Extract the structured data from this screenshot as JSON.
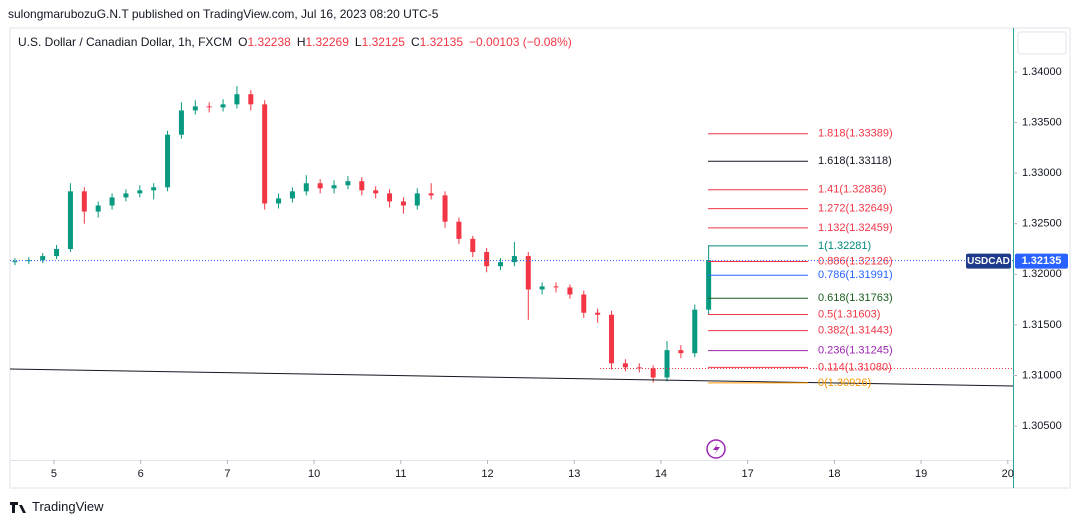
{
  "chart_data": {
    "type": "candlestick",
    "publisher": "sulongmarubozuG.N.T published on TradingView.com, Jul 16, 2023 08:20 UTC-5",
    "title": "U.S. Dollar / Canadian Dollar, 1h, FXCM",
    "ohlc_legend": [
      {
        "key": "O",
        "value": "1.32238"
      },
      {
        "key": "H",
        "value": "1.32269"
      },
      {
        "key": "L",
        "value": "1.32125"
      },
      {
        "key": "C",
        "value": "1.32135"
      }
    ],
    "change": "−0.00103 (−0.08%)",
    "branding": "TradingView",
    "up_color": "#089981",
    "down_color": "#f23645",
    "xlim": [
      -0.507,
      11.06
    ],
    "xticks": [
      {
        "value": 0,
        "label": "5"
      },
      {
        "value": 1,
        "label": "6"
      },
      {
        "value": 2,
        "label": "7"
      },
      {
        "value": 3,
        "label": "10"
      },
      {
        "value": 4,
        "label": "11"
      },
      {
        "value": 5,
        "label": "12"
      },
      {
        "value": 6,
        "label": "13"
      },
      {
        "value": 7,
        "label": "14"
      },
      {
        "value": 8,
        "label": "17"
      },
      {
        "value": 9,
        "label": "18"
      },
      {
        "value": 10,
        "label": "19"
      },
      {
        "value": 11,
        "label": "20"
      }
    ],
    "ylim": [
      1.30164,
      1.34415
    ],
    "yticks": [
      {
        "value": 1.34,
        "label": "1.34000"
      },
      {
        "value": 1.335,
        "label": "1.33500"
      },
      {
        "value": 1.33,
        "label": "1.33000"
      },
      {
        "value": 1.325,
        "label": "1.32500"
      },
      {
        "value": 1.32,
        "label": "1.32000"
      },
      {
        "value": 1.315,
        "label": "1.31500"
      },
      {
        "value": 1.31,
        "label": "1.31000"
      },
      {
        "value": 1.305,
        "label": "1.30500"
      }
    ],
    "x": [
      -0.45,
      -0.29,
      -0.13,
      0.03,
      0.19,
      0.35,
      0.51,
      0.67,
      0.83,
      0.99,
      1.15,
      1.31,
      1.47,
      1.63,
      1.79,
      1.95,
      2.11,
      2.27,
      2.43,
      2.59,
      2.75,
      2.91,
      3.07,
      3.23,
      3.39,
      3.55,
      3.71,
      3.87,
      4.03,
      4.19,
      4.35,
      4.51,
      4.67,
      4.83,
      4.99,
      5.15,
      5.31,
      5.47,
      5.63,
      5.79,
      5.95,
      6.11,
      6.27,
      6.43,
      6.59,
      6.75,
      6.91,
      7.07,
      7.23,
      7.39,
      7.55
    ],
    "open": [
      1.3212,
      1.3213,
      1.3214,
      1.3218,
      1.3225,
      1.3282,
      1.3262,
      1.3268,
      1.3276,
      1.328,
      1.3283,
      1.3286,
      1.3338,
      1.3362,
      1.3366,
      1.3365,
      1.3368,
      1.3378,
      1.3368,
      1.327,
      1.3275,
      1.3282,
      1.329,
      1.3285,
      1.3288,
      1.3292,
      1.3283,
      1.328,
      1.3272,
      1.3268,
      1.328,
      1.3278,
      1.3252,
      1.3235,
      1.3222,
      1.3208,
      1.3212,
      1.3218,
      1.3185,
      1.3188,
      1.3187,
      1.318,
      1.3162,
      1.316,
      1.3112,
      1.3108,
      1.3107,
      1.3098,
      1.3125,
      1.3122,
      1.3165
    ],
    "high": [
      1.3216,
      1.3217,
      1.3221,
      1.3229,
      1.329,
      1.3286,
      1.3272,
      1.328,
      1.3284,
      1.3288,
      1.329,
      1.3342,
      1.337,
      1.3372,
      1.337,
      1.3373,
      1.3386,
      1.3382,
      1.3372,
      1.328,
      1.3286,
      1.3298,
      1.3294,
      1.3293,
      1.3297,
      1.3296,
      1.3287,
      1.3284,
      1.3276,
      1.3285,
      1.329,
      1.3282,
      1.3256,
      1.3238,
      1.3226,
      1.3216,
      1.3232,
      1.3222,
      1.3192,
      1.3192,
      1.319,
      1.3184,
      1.3166,
      1.3164,
      1.3116,
      1.3112,
      1.311,
      1.3134,
      1.313,
      1.317,
      1.3228
    ],
    "low": [
      1.3209,
      1.321,
      1.3211,
      1.3215,
      1.3222,
      1.325,
      1.3256,
      1.3264,
      1.3272,
      1.3276,
      1.3274,
      1.3282,
      1.3334,
      1.3358,
      1.336,
      1.3361,
      1.3364,
      1.3362,
      1.3264,
      1.3265,
      1.3271,
      1.3278,
      1.328,
      1.328,
      1.3284,
      1.3278,
      1.3275,
      1.3266,
      1.326,
      1.3264,
      1.3274,
      1.3246,
      1.323,
      1.3217,
      1.3202,
      1.3204,
      1.3208,
      1.3155,
      1.318,
      1.3182,
      1.3176,
      1.3157,
      1.3152,
      1.3106,
      1.3104,
      1.3103,
      1.3093,
      1.3094,
      1.3117,
      1.3118,
      1.316
    ],
    "close": [
      1.3213,
      1.3214,
      1.3218,
      1.3225,
      1.3282,
      1.3262,
      1.3268,
      1.3276,
      1.328,
      1.3283,
      1.3286,
      1.3338,
      1.3362,
      1.3366,
      1.3365,
      1.3368,
      1.3378,
      1.3368,
      1.327,
      1.3275,
      1.3282,
      1.329,
      1.3285,
      1.3288,
      1.3292,
      1.3283,
      1.328,
      1.3272,
      1.3268,
      1.328,
      1.3278,
      1.3252,
      1.3235,
      1.3222,
      1.3208,
      1.3212,
      1.3218,
      1.3185,
      1.3188,
      1.3187,
      1.318,
      1.3162,
      1.316,
      1.3112,
      1.3108,
      1.3107,
      1.3098,
      1.3125,
      1.3122,
      1.3165,
      1.3214
    ],
    "symbol": "USDCAD",
    "last_price": 1.32135,
    "last_price_color": "#2962ff",
    "fib_levels": [
      {
        "label": "1.818(1.33389)",
        "price": 1.33389,
        "color": "#f23645"
      },
      {
        "label": "1.618(1.33118)",
        "price": 1.33118,
        "color": "#131722"
      },
      {
        "label": "1.41(1.32836)",
        "price": 1.32836,
        "color": "#f23645"
      },
      {
        "label": "1.272(1.32649)",
        "price": 1.32649,
        "color": "#f23645"
      },
      {
        "label": "1.132(1.32459)",
        "price": 1.32459,
        "color": "#f23645"
      },
      {
        "label": "1(1.32281)",
        "price": 1.32281,
        "color": "#00897b"
      },
      {
        "label": "0.886(1.32126)",
        "price": 1.32126,
        "color": "#f23645"
      },
      {
        "label": "0.786(1.31991)",
        "price": 1.31991,
        "color": "#2962ff"
      },
      {
        "label": "0.618(1.31763)",
        "price": 1.31763,
        "color": "#1b5e20"
      },
      {
        "label": "0.5(1.31603)",
        "price": 1.31603,
        "color": "#f23645"
      },
      {
        "label": "0.382(1.31443)",
        "price": 1.31443,
        "color": "#f23645"
      },
      {
        "label": "0.236(1.31245)",
        "price": 1.31245,
        "color": "#9c27b0"
      },
      {
        "label": "0.114(1.31080)",
        "price": 1.3108,
        "color": "#f23645"
      },
      {
        "label": "0(1.30926)",
        "price": 1.30926,
        "color": "#ff9800"
      }
    ]
  }
}
